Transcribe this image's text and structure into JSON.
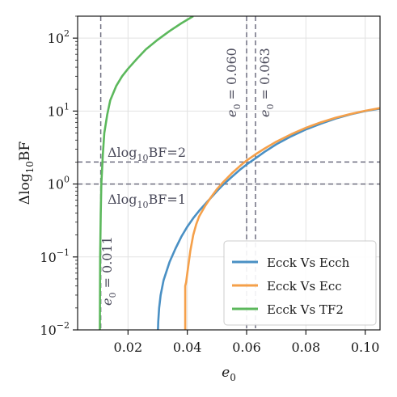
{
  "chart_data": {
    "type": "line",
    "xlabel": "e",
    "xlabel_sub": "0",
    "ylabel_pre": "Δlog",
    "ylabel_sub": "10",
    "ylabel_post": "BF",
    "xlim": [
      0.003,
      0.105
    ],
    "ylim": [
      0.01,
      200
    ],
    "yscale": "log",
    "grid": true,
    "legend_position": "lower-right",
    "x_ticks": [
      {
        "value": 0.02,
        "label": "0.02"
      },
      {
        "value": 0.04,
        "label": "0.04"
      },
      {
        "value": 0.06,
        "label": "0.06"
      },
      {
        "value": 0.08,
        "label": "0.08"
      },
      {
        "value": 0.1,
        "label": "0.10"
      }
    ],
    "y_ticks": [
      {
        "value": 0.01,
        "base": "10",
        "exp": "−2"
      },
      {
        "value": 0.1,
        "base": "10",
        "exp": "−1"
      },
      {
        "value": 1,
        "base": "10",
        "exp": "0"
      },
      {
        "value": 10,
        "base": "10",
        "exp": "1"
      },
      {
        "value": 100,
        "base": "10",
        "exp": "2"
      }
    ],
    "series": [
      {
        "name": "Ecck Vs Ecch",
        "color": "#4a90c4",
        "points": [
          [
            0.0301,
            0.01
          ],
          [
            0.0302,
            0.013
          ],
          [
            0.0305,
            0.02
          ],
          [
            0.031,
            0.03
          ],
          [
            0.032,
            0.048
          ],
          [
            0.034,
            0.085
          ],
          [
            0.036,
            0.13
          ],
          [
            0.038,
            0.19
          ],
          [
            0.04,
            0.26
          ],
          [
            0.042,
            0.34
          ],
          [
            0.044,
            0.43
          ],
          [
            0.046,
            0.53
          ],
          [
            0.048,
            0.65
          ],
          [
            0.05,
            0.8
          ],
          [
            0.052,
            0.97
          ],
          [
            0.055,
            1.25
          ],
          [
            0.058,
            1.6
          ],
          [
            0.06,
            1.85
          ],
          [
            0.063,
            2.25
          ],
          [
            0.066,
            2.75
          ],
          [
            0.07,
            3.5
          ],
          [
            0.075,
            4.5
          ],
          [
            0.08,
            5.6
          ],
          [
            0.085,
            6.7
          ],
          [
            0.09,
            7.9
          ],
          [
            0.095,
            9.0
          ],
          [
            0.1,
            10.0
          ],
          [
            0.105,
            10.8
          ]
        ]
      },
      {
        "name": "Ecck Vs Ecc",
        "color": "#f5a04a",
        "points": [
          [
            0.0393,
            0.01
          ],
          [
            0.0393,
            0.04
          ],
          [
            0.0396,
            0.045
          ],
          [
            0.04,
            0.06
          ],
          [
            0.041,
            0.12
          ],
          [
            0.042,
            0.2
          ],
          [
            0.043,
            0.28
          ],
          [
            0.044,
            0.36
          ],
          [
            0.046,
            0.5
          ],
          [
            0.048,
            0.66
          ],
          [
            0.05,
            0.85
          ],
          [
            0.052,
            1.05
          ],
          [
            0.055,
            1.4
          ],
          [
            0.058,
            1.8
          ],
          [
            0.06,
            2.1
          ],
          [
            0.063,
            2.55
          ],
          [
            0.066,
            3.05
          ],
          [
            0.07,
            3.8
          ],
          [
            0.075,
            4.8
          ],
          [
            0.08,
            5.9
          ],
          [
            0.085,
            7.0
          ],
          [
            0.09,
            8.1
          ],
          [
            0.095,
            9.1
          ],
          [
            0.1,
            10.1
          ],
          [
            0.105,
            11.0
          ]
        ]
      },
      {
        "name": "Ecck Vs TF2",
        "color": "#5cb85c",
        "points": [
          [
            0.0105,
            0.01
          ],
          [
            0.0106,
            0.1
          ],
          [
            0.0108,
            0.4
          ],
          [
            0.011,
            1.0
          ],
          [
            0.0115,
            2.5
          ],
          [
            0.012,
            5.0
          ],
          [
            0.013,
            9.0
          ],
          [
            0.014,
            14
          ],
          [
            0.016,
            22
          ],
          [
            0.018,
            30
          ],
          [
            0.02,
            38
          ],
          [
            0.023,
            52
          ],
          [
            0.026,
            70
          ],
          [
            0.03,
            95
          ],
          [
            0.034,
            125
          ],
          [
            0.038,
            160
          ],
          [
            0.042,
            200
          ]
        ]
      }
    ],
    "reference_lines": {
      "vertical": [
        0.0108,
        0.06,
        0.063
      ],
      "horizontal": [
        1,
        2
      ]
    },
    "annotations": {
      "e_011": {
        "pre": "e",
        "sub": "0",
        "post": " = 0.011"
      },
      "e_060": {
        "pre": "e",
        "sub": "0",
        "post": " = 0.060"
      },
      "e_063": {
        "pre": "e",
        "sub": "0",
        "post": " = 0.063"
      },
      "bf2": {
        "pre": "Δlog",
        "sub": "10",
        "post": "BF=2"
      },
      "bf1": {
        "pre": "Δlog",
        "sub": "10",
        "post": "BF=1"
      }
    }
  }
}
